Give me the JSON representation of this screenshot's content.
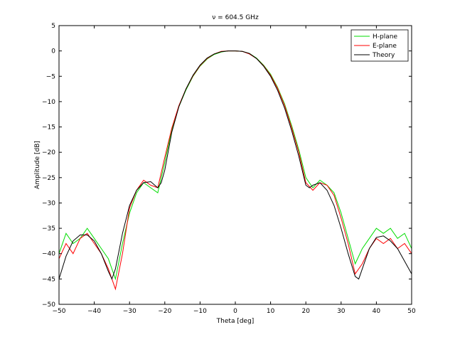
{
  "chart_data": {
    "type": "line",
    "title": "ν = 604.5 GHz",
    "xlabel": "Theta [deg]",
    "ylabel": "Amplitude [dB]",
    "xlim": [
      -50,
      50
    ],
    "ylim": [
      -50,
      5
    ],
    "xticks": [
      -50,
      -40,
      -30,
      -20,
      -10,
      0,
      10,
      20,
      30,
      40,
      50
    ],
    "yticks": [
      5,
      0,
      -5,
      -10,
      -15,
      -20,
      -25,
      -30,
      -35,
      -40,
      -45,
      -50
    ],
    "grid": false,
    "legend_position": "top-right",
    "series": [
      {
        "name": "H-plane",
        "color": "#00dd00",
        "x": [
          -50,
          -48,
          -46,
          -44,
          -42,
          -40,
          -38,
          -36,
          -34,
          -32,
          -30,
          -28,
          -26,
          -24,
          -22,
          -20,
          -18,
          -16,
          -14,
          -12,
          -10,
          -8,
          -6,
          -4,
          -2,
          0,
          2,
          4,
          6,
          8,
          10,
          12,
          14,
          16,
          18,
          20,
          22,
          24,
          26,
          28,
          30,
          32,
          34,
          36,
          38,
          40,
          42,
          44,
          46,
          48,
          50
        ],
        "y": [
          -40,
          -36,
          -38,
          -37,
          -35,
          -37,
          -39,
          -41,
          -45,
          -38,
          -32,
          -28,
          -26,
          -27,
          -28,
          -22,
          -15.5,
          -11,
          -7.7,
          -5.0,
          -3.0,
          -1.6,
          -0.7,
          -0.2,
          0.0,
          0.0,
          -0.1,
          -0.5,
          -1.4,
          -2.8,
          -4.6,
          -7.2,
          -10.5,
          -14.8,
          -19.5,
          -25,
          -27,
          -25.5,
          -26.5,
          -28,
          -32,
          -37,
          -42,
          -39,
          -37,
          -35,
          -36,
          -35,
          -37,
          -36,
          -39
        ]
      },
      {
        "name": "E-plane",
        "color": "#ff0000",
        "x": [
          -50,
          -48,
          -46,
          -44,
          -42,
          -40,
          -38,
          -36,
          -34,
          -32,
          -30,
          -28,
          -26,
          -24,
          -22,
          -20,
          -18,
          -16,
          -14,
          -12,
          -10,
          -8,
          -6,
          -4,
          -2,
          0,
          2,
          4,
          6,
          8,
          10,
          12,
          14,
          16,
          18,
          20,
          22,
          24,
          26,
          28,
          30,
          32,
          34,
          36,
          38,
          40,
          42,
          44,
          46,
          48,
          50
        ],
        "y": [
          -41,
          -38,
          -40,
          -37,
          -36,
          -38,
          -40,
          -43,
          -47,
          -40,
          -31,
          -27.5,
          -25.5,
          -26.5,
          -27,
          -21,
          -15.2,
          -10.8,
          -7.5,
          -4.9,
          -2.9,
          -1.5,
          -0.6,
          -0.1,
          0.0,
          0.0,
          -0.1,
          -0.6,
          -1.5,
          -2.9,
          -4.8,
          -7.4,
          -10.8,
          -15.2,
          -20,
          -26,
          -27.5,
          -26,
          -26.5,
          -28.5,
          -33,
          -38,
          -44,
          -42,
          -39,
          -37,
          -38,
          -37,
          -39,
          -38,
          -40
        ]
      },
      {
        "name": "Theory",
        "color": "#000000",
        "x": [
          -50,
          -48,
          -46,
          -44,
          -42,
          -40,
          -38,
          -36,
          -35,
          -34,
          -32,
          -30,
          -28,
          -26,
          -24,
          -22,
          -21,
          -20,
          -18,
          -16,
          -14,
          -12,
          -10,
          -8,
          -6,
          -4,
          -2,
          0,
          2,
          4,
          6,
          8,
          10,
          12,
          14,
          16,
          18,
          20,
          21,
          22,
          24,
          26,
          28,
          30,
          32,
          34,
          35,
          36,
          38,
          40,
          42,
          44,
          46,
          48,
          50
        ],
        "y": [
          -45,
          -40.5,
          -37.5,
          -36.3,
          -36.3,
          -37.5,
          -40.0,
          -43.5,
          -45.0,
          -43.0,
          -36.0,
          -30.5,
          -27.5,
          -26.0,
          -25.8,
          -27.0,
          -26.0,
          -23.5,
          -16.0,
          -11.0,
          -7.5,
          -4.8,
          -2.8,
          -1.4,
          -0.6,
          -0.15,
          0.0,
          0.0,
          -0.1,
          -0.5,
          -1.5,
          -3.0,
          -5.0,
          -7.8,
          -11.3,
          -15.8,
          -20.8,
          -26.5,
          -27.0,
          -26.5,
          -26.0,
          -27.5,
          -30.5,
          -35.0,
          -40.0,
          -44.5,
          -45.0,
          -43.0,
          -39.0,
          -36.8,
          -36.5,
          -37.5,
          -39.0,
          -41.5,
          -44.0
        ]
      }
    ]
  }
}
